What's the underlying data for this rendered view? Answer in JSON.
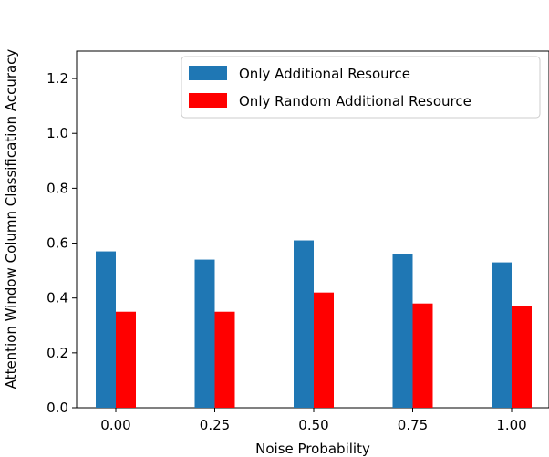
{
  "chart_data": {
    "type": "bar",
    "title": "",
    "xlabel": "Noise Probability",
    "ylabel": "Attention Window Column Classification Accuracy",
    "categories": [
      "0.00",
      "0.25",
      "0.50",
      "0.75",
      "1.00"
    ],
    "ylim": [
      0,
      1.3
    ],
    "yticks": [
      "0.0",
      "0.2",
      "0.4",
      "0.6",
      "0.8",
      "1.0",
      "1.2"
    ],
    "grid": false,
    "legend_position": "upper-right",
    "series": [
      {
        "name": "Only Additional Resource",
        "color": "#1f77b4",
        "values": [
          0.57,
          0.54,
          0.61,
          0.56,
          0.53
        ]
      },
      {
        "name": "Only Random Additional Resource",
        "color": "#ff0000",
        "values": [
          0.35,
          0.35,
          0.42,
          0.38,
          0.37
        ]
      }
    ]
  }
}
